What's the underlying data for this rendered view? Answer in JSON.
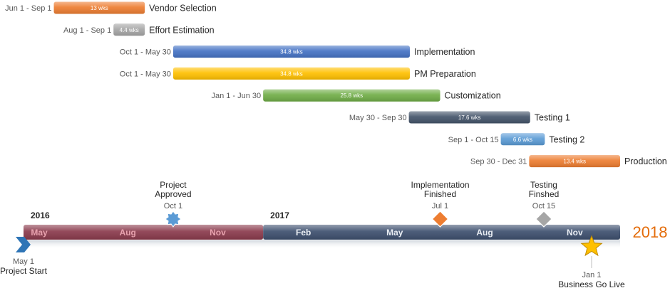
{
  "chart_data": {
    "type": "gantt",
    "next_year_label": "2018",
    "timeline": {
      "start": "2016-05-01",
      "end": "2017-12-31",
      "segments": [
        {
          "year": "2016",
          "start": "2016-05-01",
          "end": "2016-12-31",
          "color": "#8a3a4c",
          "months": [
            "May",
            "Aug",
            "Nov"
          ]
        },
        {
          "year": "2017",
          "start": "2017-01-01",
          "end": "2017-12-31",
          "color": "#3d4f6e",
          "months": [
            "Feb",
            "May",
            "Aug",
            "Nov"
          ]
        }
      ]
    },
    "tasks": [
      {
        "name": "Vendor Selection",
        "dates": "Jun 1 - Sep 1",
        "duration": "13 wks",
        "start": "2016-06-01",
        "end": "2016-09-01",
        "color": "#ed7d31"
      },
      {
        "name": "Effort Estimation",
        "dates": "Aug 1 - Sep 1",
        "duration": "4.4 wks",
        "start": "2016-08-01",
        "end": "2016-09-01",
        "color": "#a6a6a6"
      },
      {
        "name": "Implementation",
        "dates": "Oct 1 - May 30",
        "duration": "34.8 wks",
        "start": "2016-10-01",
        "end": "2017-05-30",
        "color": "#4472c4"
      },
      {
        "name": "PM Preparation",
        "dates": "Oct 1 - May 30",
        "duration": "34.8 wks",
        "start": "2016-10-01",
        "end": "2017-05-30",
        "color": "#ffc000"
      },
      {
        "name": "Customization",
        "dates": "Jan 1 - Jun 30",
        "duration": "25.8 wks",
        "start": "2017-01-01",
        "end": "2017-06-30",
        "color": "#70ad47"
      },
      {
        "name": "Testing 1",
        "dates": "May 30 - Sep 30",
        "duration": "17.6 wks",
        "start": "2017-05-30",
        "end": "2017-09-30",
        "color": "#44546a"
      },
      {
        "name": "Testing 2",
        "dates": "Sep 1 - Oct 15",
        "duration": "6.6 wks",
        "start": "2017-09-01",
        "end": "2017-10-15",
        "color": "#5b9bd5"
      },
      {
        "name": "Production",
        "dates": "Sep 30 - Dec 31",
        "duration": "13.4 wks",
        "start": "2017-09-30",
        "end": "2017-12-31",
        "color": "#ed7d31"
      }
    ],
    "milestones": [
      {
        "title": "Project Start",
        "date_label": "May 1",
        "date": "2016-05-01",
        "shape": "chevron",
        "color": "#2e75b6",
        "label_side": "below"
      },
      {
        "title": "Project Approved",
        "date_label": "Oct 1",
        "date": "2016-10-01",
        "shape": "burst",
        "color": "#5b9bd5",
        "label_side": "above"
      },
      {
        "title": "Implementation Finished",
        "date_label": "Jul 1",
        "date": "2017-07-01",
        "shape": "diamond",
        "color": "#ed7d31",
        "label_side": "above"
      },
      {
        "title": "Testing Finshed",
        "date_label": "Oct 15",
        "date": "2017-10-15",
        "shape": "diamond",
        "color": "#a6a6a6",
        "label_side": "above"
      },
      {
        "title": "Business Go Live",
        "date_label": "Jan 1",
        "date": "2018-01-01",
        "shape": "star",
        "color": "#ffc000",
        "label_side": "below"
      }
    ]
  }
}
